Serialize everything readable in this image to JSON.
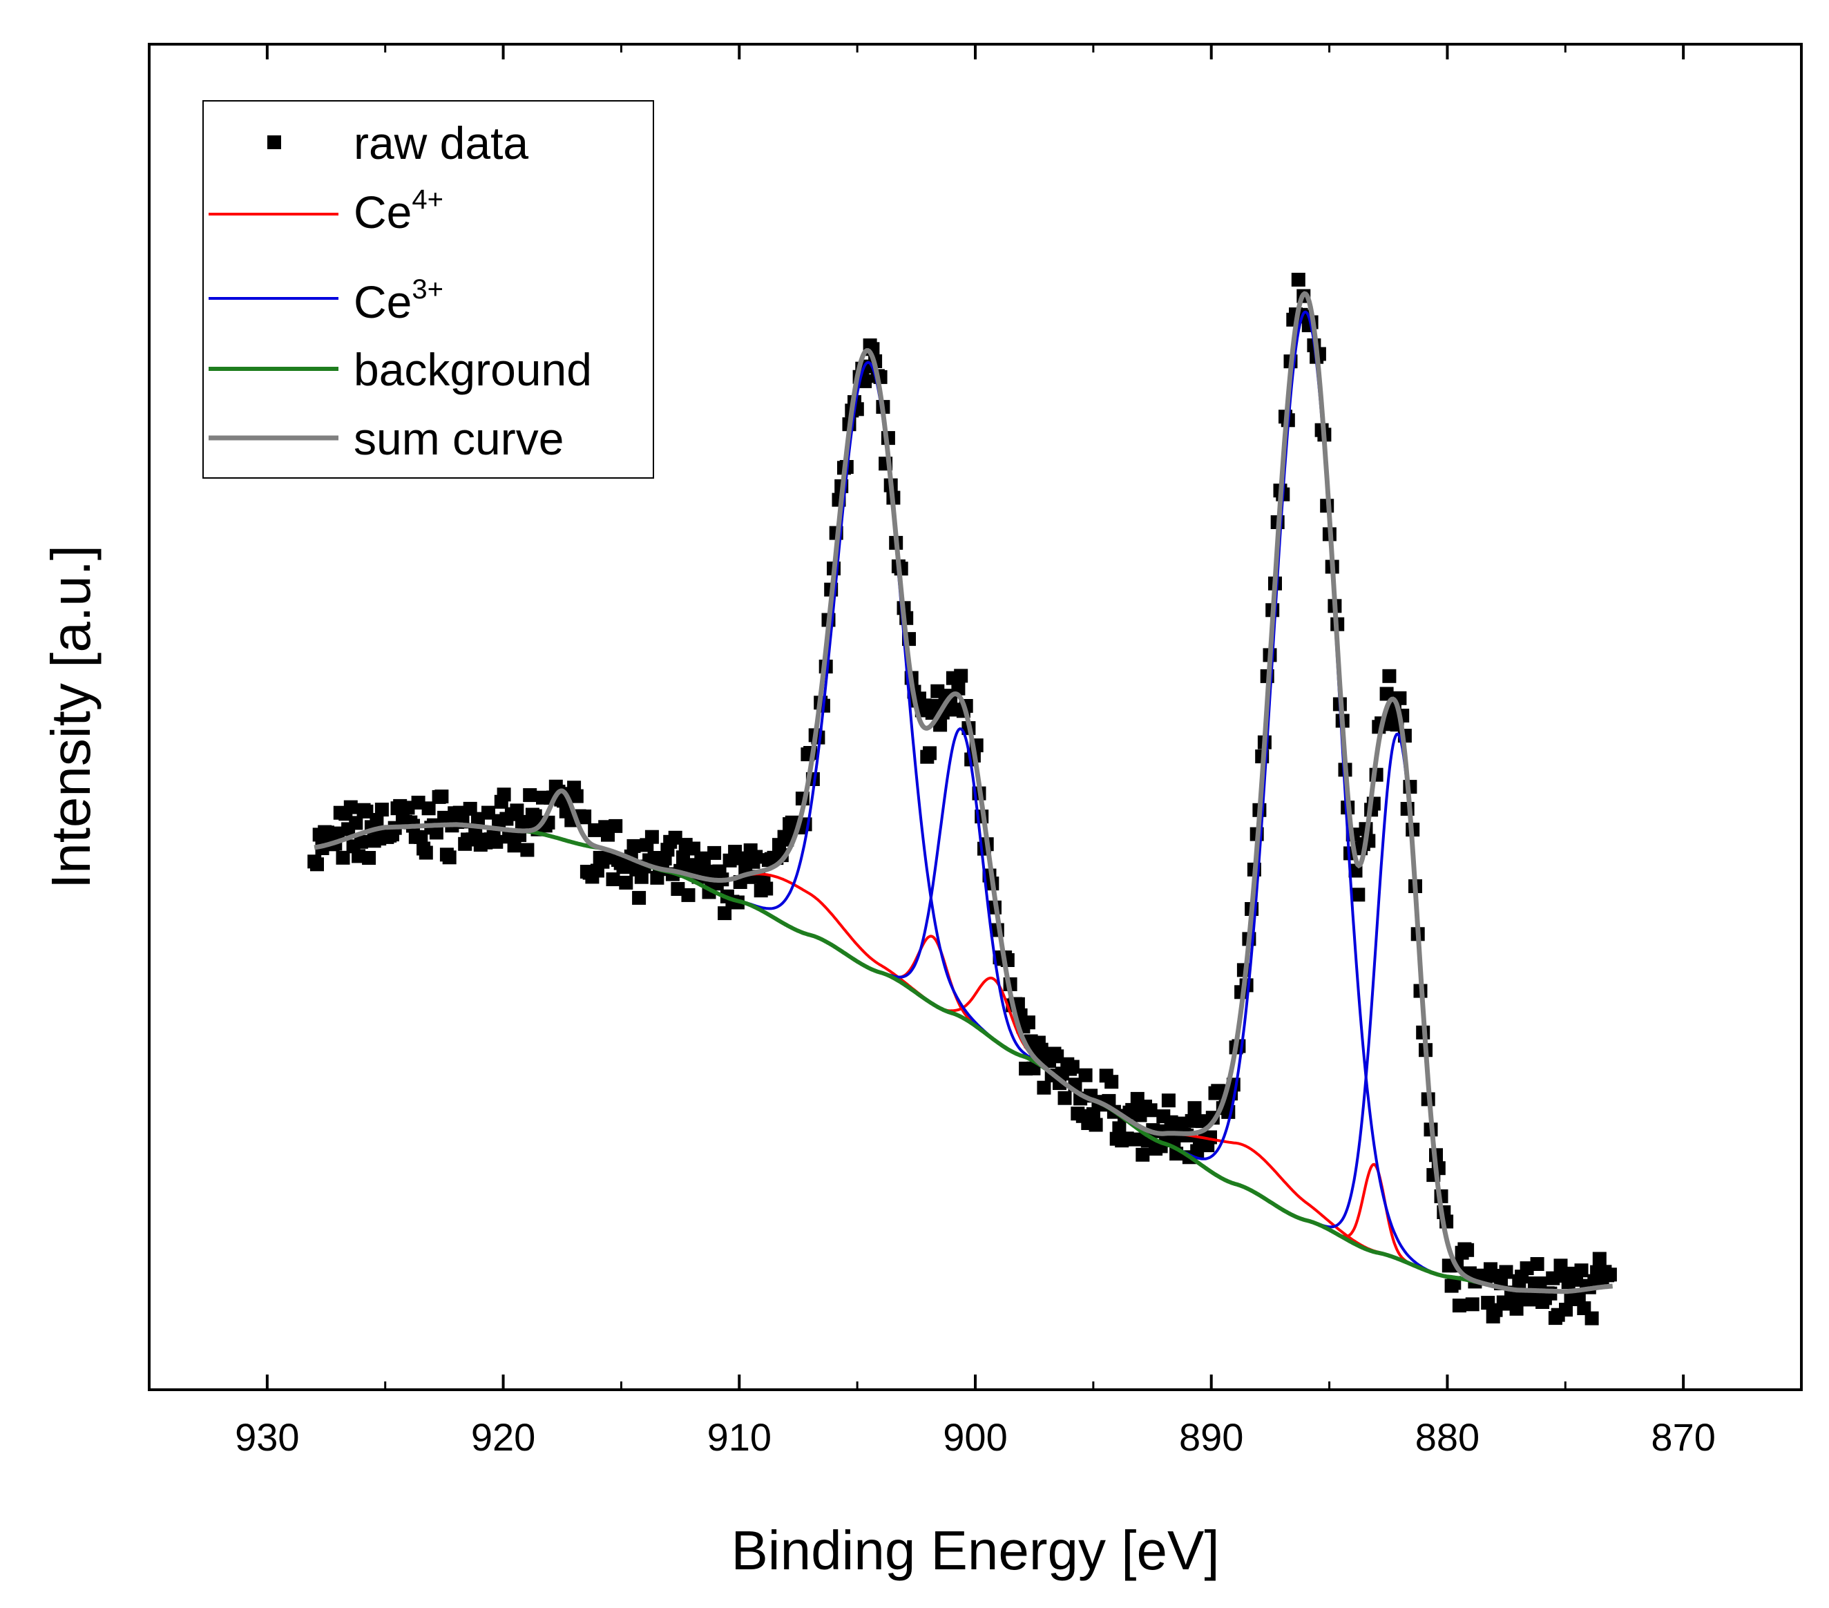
{
  "chart_data": {
    "type": "scatter",
    "xlabel": "Binding Energy [eV]",
    "ylabel": "Intensity [a.u.]",
    "xlim": [
      935,
      865
    ],
    "ylim": [
      0,
      1
    ],
    "x_reversed": true,
    "y_ticks_shown": false,
    "xticks": [
      930,
      920,
      910,
      900,
      890,
      880,
      870
    ],
    "xtick_labels": [
      "930",
      "920",
      "910",
      "900",
      "890",
      "880",
      "870"
    ],
    "grid": false,
    "legend_position": "top-left",
    "legend": {
      "raw": "raw data",
      "ce4": {
        "base": "Ce",
        "sup": "4+"
      },
      "ce3": {
        "base": "Ce",
        "sup": "3+"
      },
      "background": "background",
      "sum": "sum curve"
    },
    "colors": {
      "raw": "#000000",
      "ce4": "#ff0000",
      "ce3": "#0000dd",
      "background": "#1e7d1e",
      "sum": "#808080"
    },
    "series": [
      {
        "name": "raw data",
        "kind": "scatter",
        "x_range": [
          928,
          873
        ],
        "noise_amplitude": 0.018
      },
      {
        "name": "background",
        "kind": "line",
        "x_range": [
          928,
          873
        ]
      },
      {
        "name": "Ce4+",
        "kind": "line",
        "peaks": [
          {
            "center": 917.5,
            "height": 0.036,
            "width": 0.5
          },
          {
            "center": 907.8,
            "height": 0.033,
            "width": 2.0
          },
          {
            "center": 901.8,
            "height": 0.05,
            "width": 0.6
          },
          {
            "center": 899.2,
            "height": 0.045,
            "width": 0.7
          },
          {
            "center": 888.6,
            "height": 0.031,
            "width": 2.0
          },
          {
            "center": 883.1,
            "height": 0.065,
            "width": 0.45
          }
        ]
      },
      {
        "name": "Ce3+",
        "kind": "line",
        "peaks": [
          {
            "center": 904.5,
            "height": 0.45,
            "width": 1.4
          },
          {
            "center": 900.6,
            "height": 0.214,
            "width": 0.9
          },
          {
            "center": 886.0,
            "height": 0.675,
            "width": 1.4
          },
          {
            "center": 882.1,
            "height": 0.39,
            "width": 0.9
          }
        ]
      },
      {
        "name": "sum curve",
        "kind": "line"
      }
    ],
    "background_points": [
      [
        928,
        0.403
      ],
      [
        925,
        0.418
      ],
      [
        922,
        0.42
      ],
      [
        919,
        0.415
      ],
      [
        916,
        0.403
      ],
      [
        913,
        0.385
      ],
      [
        910,
        0.363
      ],
      [
        907,
        0.338
      ],
      [
        904,
        0.31
      ],
      [
        901,
        0.28
      ],
      [
        898,
        0.248
      ],
      [
        895,
        0.215
      ],
      [
        892,
        0.183
      ],
      [
        889,
        0.153
      ],
      [
        886,
        0.126
      ],
      [
        883,
        0.102
      ],
      [
        880,
        0.084
      ],
      [
        877,
        0.074
      ],
      [
        875,
        0.073
      ],
      [
        873,
        0.077
      ]
    ]
  }
}
